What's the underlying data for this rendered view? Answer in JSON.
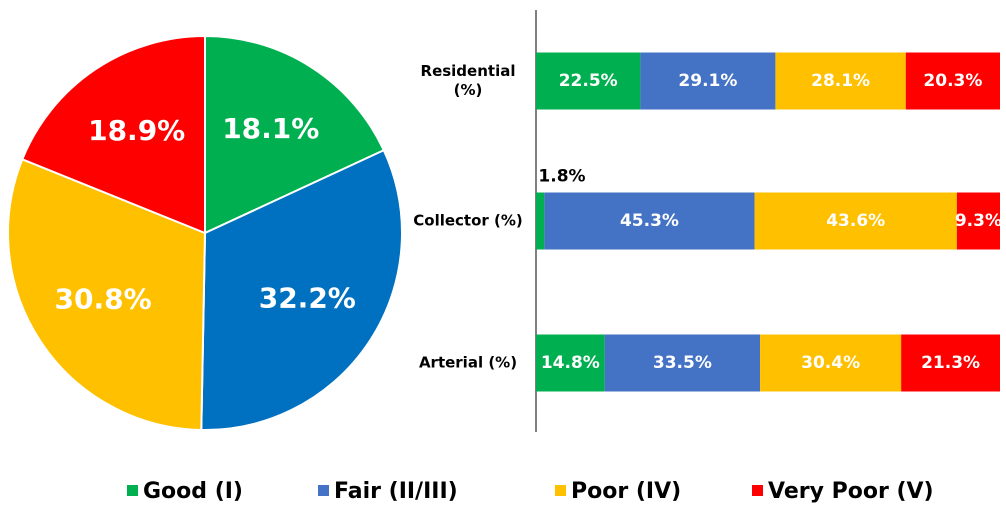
{
  "chart_data": [
    {
      "type": "pie",
      "values": [
        18.1,
        32.2,
        30.8,
        18.9
      ],
      "value_labels": [
        "18.1%",
        "32.2%",
        "30.8%",
        "18.9%"
      ],
      "colors": [
        "#00b050",
        "#0070c0",
        "#ffc000",
        "#ff0000"
      ]
    },
    {
      "type": "stacked_barh",
      "categories": [
        "Residential (%)",
        "Collector (%)",
        "Arterial (%)"
      ],
      "series": [
        {
          "name": "Good (I)",
          "color": "#00b050",
          "values": [
            22.5,
            1.8,
            14.8
          ],
          "value_labels": [
            "22.5%",
            "1.8%",
            "14.8%"
          ]
        },
        {
          "name": "Fair (II/III)",
          "color": "#4472c4",
          "values": [
            29.1,
            45.3,
            33.5
          ],
          "value_labels": [
            "29.1%",
            "45.3%",
            "33.5%"
          ]
        },
        {
          "name": "Poor (IV)",
          "color": "#ffc000",
          "values": [
            28.1,
            43.6,
            30.4
          ],
          "value_labels": [
            "28.1%",
            "43.6%",
            "30.4%"
          ]
        },
        {
          "name": "Very Poor (V)",
          "color": "#ff0000",
          "values": [
            20.3,
            9.3,
            21.3
          ],
          "value_labels": [
            "20.3%",
            "9.3%",
            "21.3%"
          ]
        }
      ],
      "xlim": [
        0,
        100
      ]
    }
  ]
}
